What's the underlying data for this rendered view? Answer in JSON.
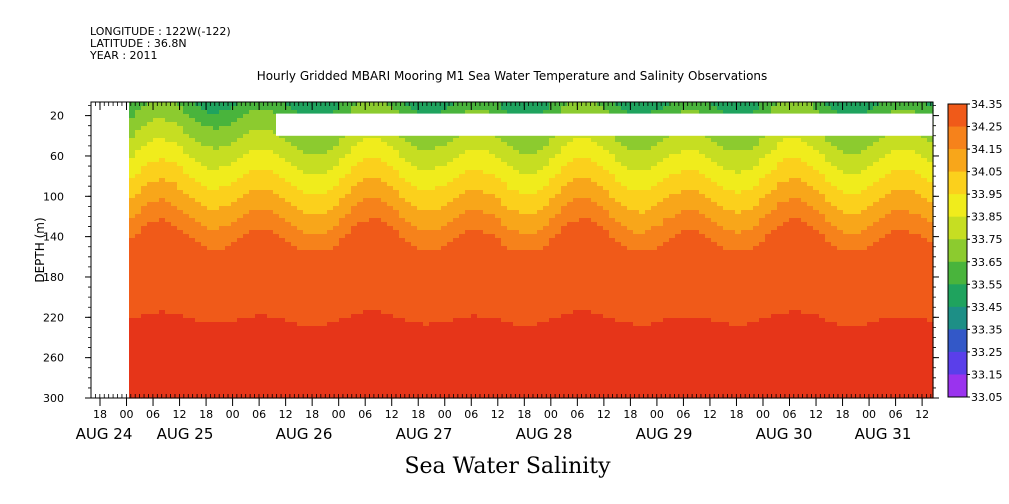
{
  "header": {
    "longitude": "LONGITUDE : 122W(-122)",
    "latitude": "LATITUDE : 36.8N",
    "year": "YEAR : 2011"
  },
  "chart_data": {
    "type": "heatmap",
    "title": "Hourly Gridded MBARI Mooring M1 Sea Water Temperature and Salinity Observations",
    "bottom_title": "Sea Water Salinity",
    "ylabel": "DEPTH (m)",
    "ylim": [
      300,
      0
    ],
    "y_ticks": [
      20,
      60,
      100,
      140,
      180,
      220,
      260,
      300
    ],
    "x_start_hour": "AUG 24 18",
    "x_ticks": [
      "18",
      "00",
      "06",
      "12",
      "18",
      "00",
      "06",
      "12",
      "18",
      "00",
      "06",
      "12",
      "18",
      "00",
      "06",
      "12",
      "18",
      "00",
      "06",
      "12",
      "18",
      "00",
      "06",
      "12",
      "18",
      "00",
      "06",
      "12",
      "18",
      "00",
      "06",
      "12"
    ],
    "x_dates": [
      "AUG 24",
      "AUG 25",
      "AUG 26",
      "AUG 27",
      "AUG 28",
      "AUG 29",
      "AUG 30",
      "AUG 31"
    ],
    "colorbar": {
      "levels": [
        33.05,
        33.15,
        33.25,
        33.35,
        33.45,
        33.55,
        33.65,
        33.75,
        33.85,
        33.95,
        34.05,
        34.15,
        34.25,
        34.35
      ],
      "colors": [
        "#dd00ee",
        "#9a33ee",
        "#5a3fea",
        "#3358c8",
        "#1d8f86",
        "#1fa35e",
        "#49b43c",
        "#8ccb2f",
        "#c6de22",
        "#f0ec1c",
        "#fbd01c",
        "#f8a61a",
        "#f6821b",
        "#f05a19",
        "#e63519",
        "#d11616",
        "#b30c0c"
      ],
      "labels": [
        "34.35",
        "34.25",
        "34.15",
        "34.05",
        "33.95",
        "33.85",
        "33.75",
        "33.65",
        "33.55",
        "33.45",
        "33.35",
        "33.25",
        "33.15",
        "33.05"
      ]
    },
    "depth_profile": [
      {
        "depth": 5,
        "value": 33.45
      },
      {
        "depth": 20,
        "value": 33.55
      },
      {
        "depth": 40,
        "value": 33.65
      },
      {
        "depth": 60,
        "value": 33.75
      },
      {
        "depth": 80,
        "value": 33.85
      },
      {
        "depth": 100,
        "value": 33.95
      },
      {
        "depth": 120,
        "value": 34.05
      },
      {
        "depth": 140,
        "value": 34.15
      },
      {
        "depth": 180,
        "value": 34.2
      },
      {
        "depth": 220,
        "value": 34.25
      },
      {
        "depth": 260,
        "value": 34.35
      },
      {
        "depth": 300,
        "value": 34.3
      }
    ],
    "missing_data": [
      {
        "label": "before start",
        "x_from": "AUG 24 18",
        "x_to": "AUG 25 00",
        "depth_from": 0,
        "depth_to": 300
      },
      {
        "label": "sensor gap",
        "x_from": "AUG 26 00",
        "x_to": "AUG 31 end",
        "depth_from": 18,
        "depth_to": 40
      }
    ],
    "grid": false
  }
}
